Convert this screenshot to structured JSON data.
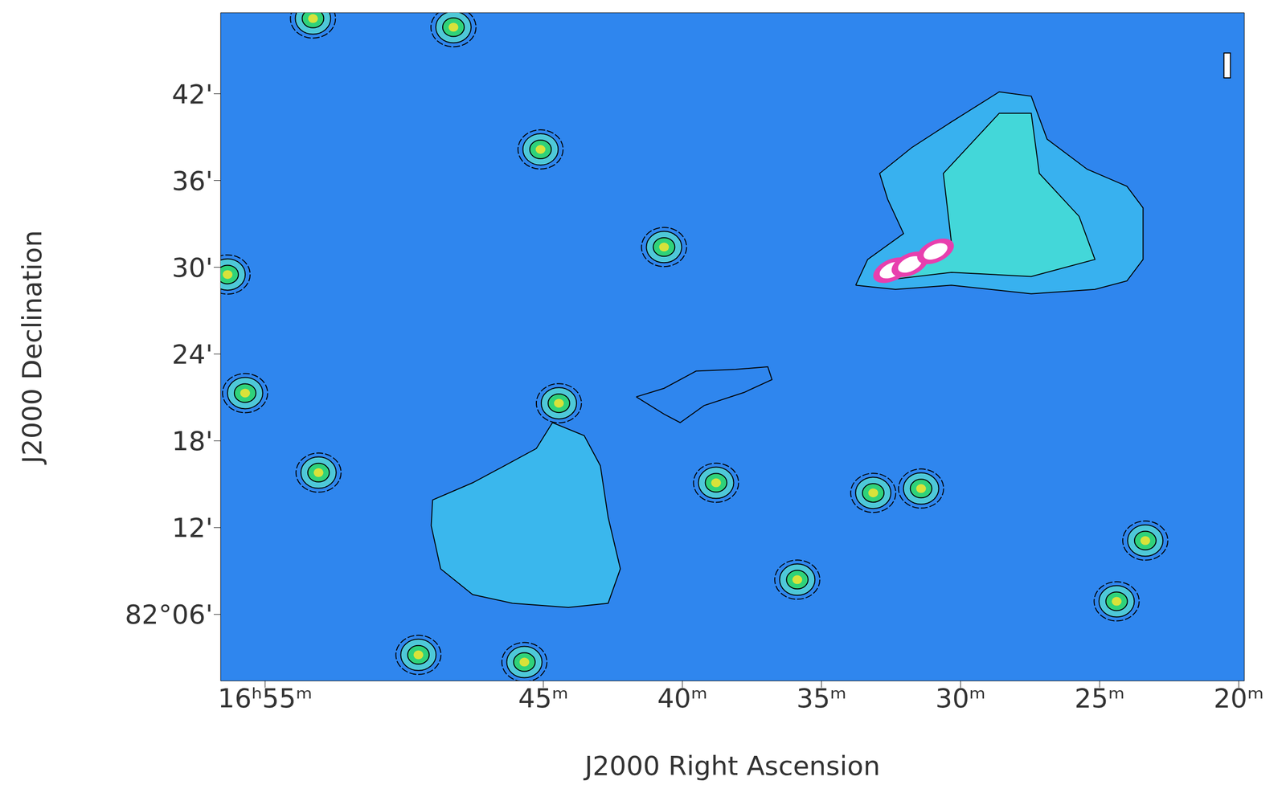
{
  "chart_data": {
    "type": "scatter",
    "xlabel": "J2000 Right Ascension",
    "ylabel": "J2000 Declination",
    "annotation": "I",
    "xlim": [
      19.8,
      56.6
    ],
    "xticks": [
      {
        "value": 55,
        "label": "16ʰ55ᵐ"
      },
      {
        "value": 45,
        "label": "45ᵐ"
      },
      {
        "value": 40,
        "label": "40ᵐ"
      },
      {
        "value": 35,
        "label": "35ᵐ"
      },
      {
        "value": 30,
        "label": "30ᵐ"
      },
      {
        "value": 25,
        "label": "25ᵐ"
      },
      {
        "value": 20,
        "label": "20ᵐ"
      }
    ],
    "ylim": [
      1.4,
      47.6
    ],
    "yticks": [
      {
        "value": 6,
        "label": "82°06'"
      },
      {
        "value": 12,
        "label": "12'"
      },
      {
        "value": 18,
        "label": "18'"
      },
      {
        "value": 24,
        "label": "24'"
      },
      {
        "value": 30,
        "label": "30'"
      },
      {
        "value": 36,
        "label": "36'"
      },
      {
        "value": 42,
        "label": "42'"
      }
    ],
    "sources": {
      "x": [
        48.23,
        53.28,
        45.1,
        40.66,
        55.72,
        53.08,
        38.79,
        33.14,
        31.42,
        35.87,
        23.36,
        24.39,
        49.49,
        45.68,
        44.44,
        56.35
      ],
      "y": [
        46.6,
        47.2,
        38.15,
        31.4,
        21.3,
        15.8,
        15.1,
        14.4,
        14.7,
        8.4,
        11.1,
        6.9,
        3.2,
        2.7,
        20.6,
        29.5
      ]
    },
    "jet_knots": {
      "x": [
        32.48,
        31.82,
        30.9
      ],
      "y": [
        29.8,
        30.2,
        31.1
      ]
    },
    "contours": [
      {
        "x": [
          33.77,
          33.34,
          32.05,
          32.62,
          32.91,
          31.76,
          30.33,
          28.61,
          27.46,
          26.89,
          25.45,
          24.02,
          23.44,
          23.44,
          24.02,
          25.17,
          27.46,
          30.33,
          32.34,
          33.77
        ],
        "y": [
          28.76,
          30.54,
          32.33,
          34.7,
          36.49,
          38.27,
          40.05,
          42.13,
          41.83,
          38.86,
          36.78,
          35.6,
          34.11,
          30.54,
          29.06,
          28.47,
          28.17,
          28.76,
          28.47,
          28.76
        ]
      },
      {
        "x": [
          32.91,
          30.33,
          30.62,
          28.61,
          27.46,
          27.17,
          25.74,
          25.17,
          27.46,
          30.33,
          32.91
        ],
        "y": [
          29.06,
          31.73,
          36.49,
          40.65,
          40.65,
          36.49,
          33.52,
          30.54,
          29.36,
          29.65,
          29.06
        ]
      },
      {
        "x": [
          48.98,
          47.54,
          46.39,
          45.25,
          44.67,
          43.53,
          42.95,
          42.67,
          42.23,
          42.67,
          44.1,
          46.11,
          47.54,
          48.69,
          49.03,
          48.98
        ],
        "y": [
          13.91,
          15.1,
          16.28,
          17.47,
          19.26,
          18.36,
          16.28,
          12.72,
          9.15,
          6.77,
          6.48,
          6.77,
          7.37,
          9.15,
          12.13,
          13.91
        ]
      },
      {
        "x": [
          41.66,
          40.66,
          39.51,
          38.08,
          36.93,
          36.78,
          37.79,
          39.22,
          40.08,
          40.66,
          41.66
        ],
        "y": [
          21.04,
          21.63,
          22.82,
          22.94,
          23.12,
          22.23,
          21.34,
          20.44,
          19.26,
          19.85,
          21.04
        ]
      }
    ]
  }
}
